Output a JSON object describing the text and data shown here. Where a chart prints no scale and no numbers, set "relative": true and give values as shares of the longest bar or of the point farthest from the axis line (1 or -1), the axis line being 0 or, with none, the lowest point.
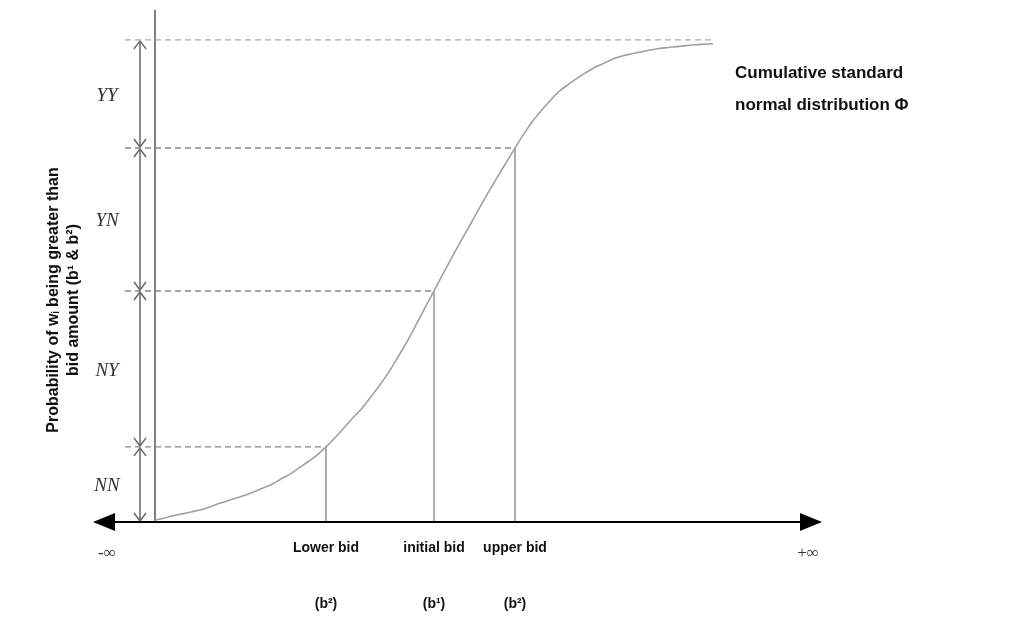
{
  "chart_data": {
    "type": "line",
    "relative": true,
    "ylabel": "Probability of wᵢ being greater than bid amount (b¹ & b²)",
    "categories": [
      null,
      null,
      null,
      null,
      null,
      null,
      null,
      null,
      null,
      null,
      null,
      null,
      null,
      null,
      null,
      null,
      null,
      null,
      null,
      "Lower bid\n(b²)",
      null,
      null,
      null,
      null,
      null,
      null,
      null,
      null,
      null,
      null,
      null,
      "initial bid\n(b¹)",
      null,
      null,
      null,
      null,
      null,
      null,
      null,
      null,
      "upper bid\n(b²)",
      null,
      null,
      null,
      null,
      null,
      null,
      null,
      null,
      null,
      null,
      null,
      null,
      null,
      null,
      null,
      null,
      null,
      null,
      null,
      null,
      null,
      null
    ],
    "series": [
      {
        "name": "Cumulative standard normal distribution Φ",
        "color": "#a0a0a0",
        "values": [
          0.004,
          0.008,
          0.013,
          0.017,
          0.021,
          0.025,
          0.031,
          0.038,
          0.044,
          0.05,
          0.056,
          0.063,
          0.071,
          0.079,
          0.09,
          0.1,
          0.113,
          0.126,
          0.14,
          0.157,
          0.176,
          0.197,
          0.218,
          0.238,
          0.262,
          0.287,
          0.314,
          0.345,
          0.377,
          0.412,
          0.448,
          0.483,
          0.519,
          0.554,
          0.588,
          0.621,
          0.655,
          0.688,
          0.72,
          0.751,
          0.782,
          0.812,
          0.839,
          0.862,
          0.883,
          0.902,
          0.916,
          0.929,
          0.941,
          0.952,
          0.96,
          0.969,
          0.975,
          0.979,
          0.983,
          0.987,
          0.99,
          0.992,
          0.994,
          0.996,
          0.998,
          0.999,
          1
        ]
      }
    ],
    "marker": "none",
    "line_style": "solid",
    "ref_lines": [
      {
        "axis": "y",
        "value": 0.157,
        "line_style": "dashed",
        "color": "#888888"
      },
      {
        "axis": "y",
        "value": 0.483,
        "line_style": "dashed",
        "color": "#888888"
      },
      {
        "axis": "y",
        "value": 0.782,
        "line_style": "dashed",
        "color": "#888888"
      },
      {
        "axis": "y",
        "value": 1.008,
        "line_style": "dashed",
        "color": "#aaaaaa"
      }
    ],
    "annotations": [
      "-∞",
      "+∞",
      "NN",
      "NY",
      "YN",
      "YY"
    ]
  }
}
